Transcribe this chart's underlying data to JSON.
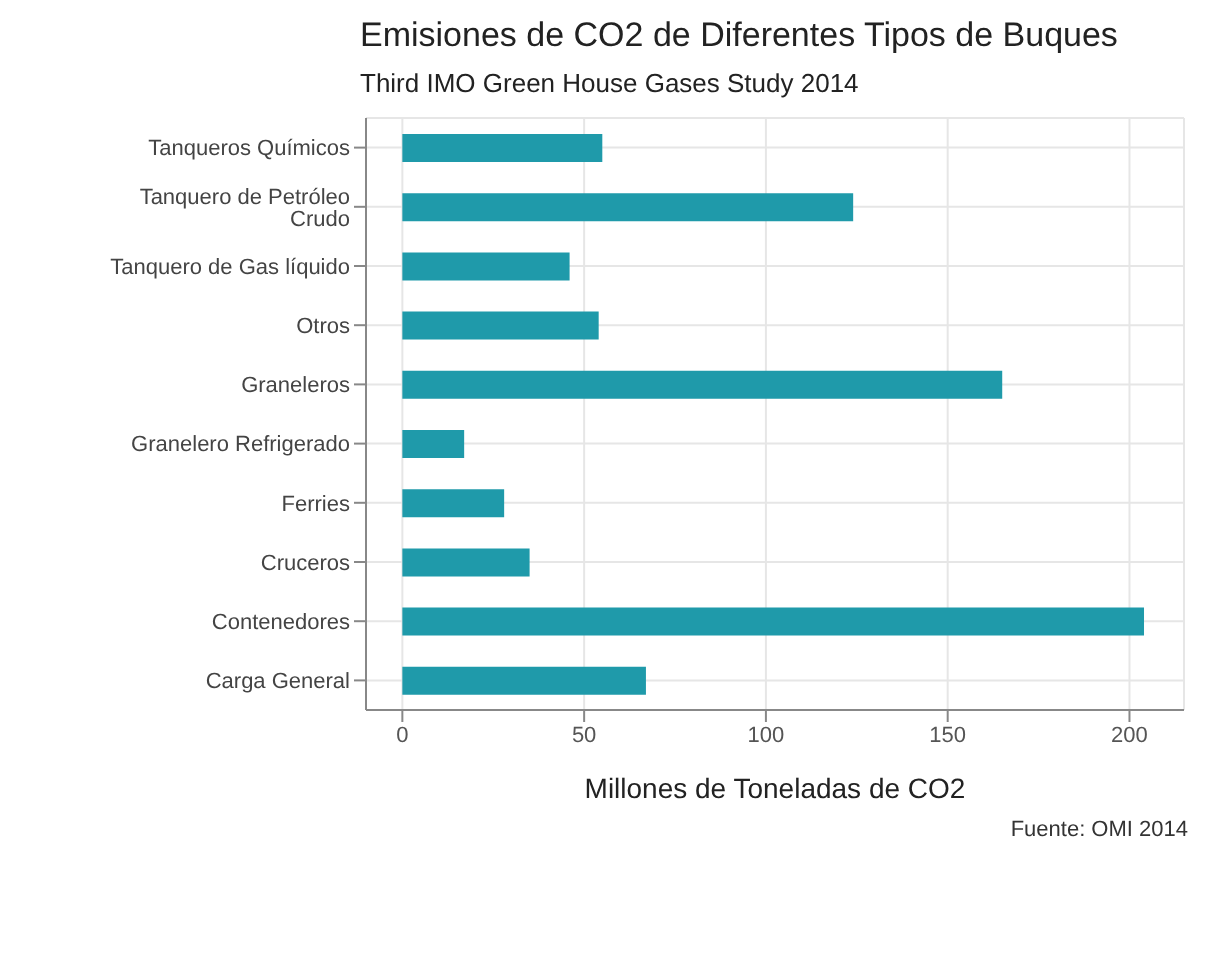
{
  "chart_data": {
    "type": "bar",
    "orientation": "horizontal",
    "title": "Emisiones de CO2 de Diferentes Tipos de Buques",
    "subtitle": "Third IMO Green House Gases Study 2014",
    "xlabel": "Millones de Toneladas de CO2",
    "annotations": [
      "Fuente: OMI 2014"
    ],
    "categories": [
      "Tanqueros Químicos",
      "Tanquero de Petróleo Crudo",
      "Tanquero de Gas líquido",
      "Otros",
      "Graneleros",
      "Granelero Refrigerado",
      "Ferries",
      "Cruceros",
      "Contenedores",
      "Carga General"
    ],
    "values": [
      55,
      124,
      46,
      54,
      165,
      17,
      28,
      35,
      204,
      67
    ],
    "color": "#1f9aaa",
    "xlim": [
      -10,
      215
    ],
    "xticks": [
      0,
      50,
      100,
      150,
      200
    ],
    "grid": true
  }
}
